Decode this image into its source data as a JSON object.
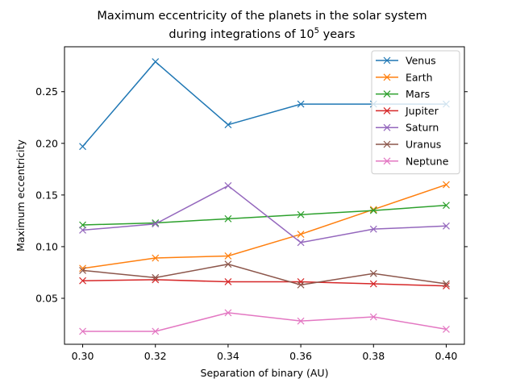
{
  "chart_data": {
    "type": "line",
    "title_line1": "Maximum eccentricity of the planets in the solar system",
    "title_line2_prefix": "during integrations of 10",
    "title_line2_exp": "5",
    "title_line2_suffix": " years",
    "xlabel": "Separation of binary (AU)",
    "ylabel": "Maximum eccentricity",
    "x": [
      0.3,
      0.32,
      0.34,
      0.36,
      0.38,
      0.4
    ],
    "x_ticks": [
      "0.30",
      "0.32",
      "0.34",
      "0.36",
      "0.38",
      "0.40"
    ],
    "y_ticks": [
      "0.05",
      "0.10",
      "0.15",
      "0.20",
      "0.25"
    ],
    "xlim": [
      0.295,
      0.405
    ],
    "ylim": [
      0.0055,
      0.2935
    ],
    "marker": "x",
    "grid": false,
    "legend_position": "upper-right",
    "series": [
      {
        "name": "Venus",
        "color": "#1f77b4",
        "values": [
          0.197,
          0.279,
          0.218,
          0.238,
          0.238,
          0.238
        ]
      },
      {
        "name": "Earth",
        "color": "#ff7f0e",
        "values": [
          0.079,
          0.089,
          0.091,
          0.112,
          0.136,
          0.16
        ]
      },
      {
        "name": "Mars",
        "color": "#2ca02c",
        "values": [
          0.121,
          0.123,
          0.127,
          0.131,
          0.135,
          0.14
        ]
      },
      {
        "name": "Jupiter",
        "color": "#d62728",
        "values": [
          0.067,
          0.068,
          0.066,
          0.066,
          0.064,
          0.062
        ]
      },
      {
        "name": "Saturn",
        "color": "#9467bd",
        "values": [
          0.116,
          0.122,
          0.159,
          0.104,
          0.117,
          0.12
        ]
      },
      {
        "name": "Uranus",
        "color": "#8c564b",
        "values": [
          0.077,
          0.07,
          0.083,
          0.063,
          0.074,
          0.064
        ]
      },
      {
        "name": "Neptune",
        "color": "#e377c2",
        "values": [
          0.018,
          0.018,
          0.036,
          0.028,
          0.032,
          0.02
        ]
      }
    ]
  }
}
